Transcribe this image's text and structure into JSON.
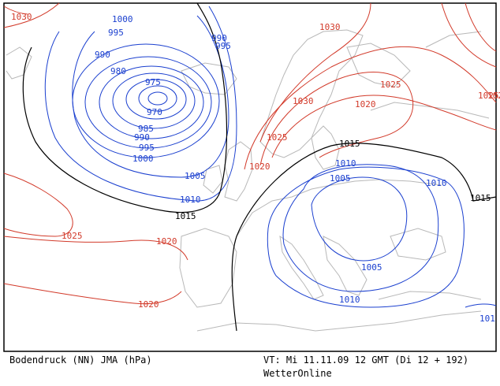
{
  "footer": {
    "product": "Bodendruck (NN) JMA (hPa)",
    "valid_time": "VT: Mi 11.11.09 12 GMT (Di 12 + 192)",
    "brand": "WetterOnline"
  },
  "colors": {
    "low_isobars": "#1a3fcf",
    "high_isobars": "#d23a2a",
    "reference_isobar": "#000000",
    "coastline": "#b8b8b8",
    "frame": "#000000"
  },
  "isobar_labels": {
    "red": [
      "1030",
      "1030",
      "1025",
      "1030",
      "1020",
      "1025",
      "1020",
      "1025",
      "1020",
      "1020",
      "1025",
      "102"
    ],
    "blue": [
      "1000",
      "995",
      "990",
      "995",
      "990",
      "980",
      "975",
      "970",
      "985",
      "990",
      "995",
      "1000",
      "1005",
      "1010",
      "1010",
      "1005",
      "1010",
      "1005",
      "1010",
      "101"
    ],
    "black": [
      "1015",
      "1015",
      "1015"
    ]
  }
}
